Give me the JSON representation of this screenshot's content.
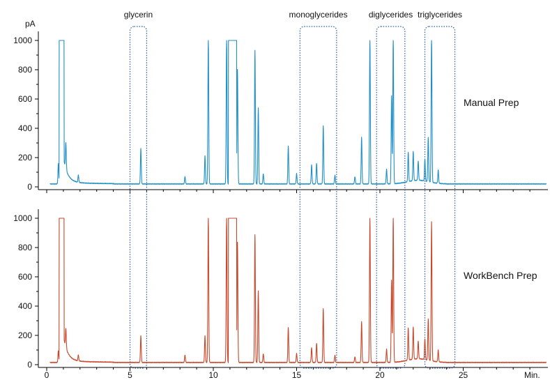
{
  "chart_data": {
    "type": "line",
    "y_unit_label": "pA",
    "x_unit_label": "Min.",
    "xlim": [
      0,
      30
    ],
    "ylim": [
      0,
      1050
    ],
    "x_ticks": [
      0,
      5,
      10,
      15,
      20,
      25
    ],
    "y_ticks": [
      0,
      200,
      400,
      600,
      800,
      1000
    ],
    "grid": false,
    "regions": [
      {
        "label": "glycerin",
        "x_start": 5.0,
        "x_end": 6.0
      },
      {
        "label": "monoglycerides",
        "x_start": 15.2,
        "x_end": 17.4
      },
      {
        "label": "diglycerides",
        "x_start": 19.8,
        "x_end": 21.5
      },
      {
        "label": "triglycerides",
        "x_start": 22.7,
        "x_end": 24.5
      }
    ],
    "series": [
      {
        "name": "Manual Prep",
        "color": "#1f8fc6",
        "baseline": 20,
        "saturated": [
          [
            0.75,
            1.05
          ],
          [
            10.9,
            11.4
          ]
        ],
        "peaks": [
          [
            0.7,
            140
          ],
          [
            1.15,
            180
          ],
          [
            1.9,
            50
          ],
          [
            5.65,
            240
          ],
          [
            8.3,
            50
          ],
          [
            9.5,
            190
          ],
          [
            9.7,
            1000
          ],
          [
            10.8,
            1000
          ],
          [
            11.45,
            780
          ],
          [
            12.5,
            910
          ],
          [
            12.7,
            520
          ],
          [
            13.0,
            70
          ],
          [
            14.5,
            260
          ],
          [
            15.0,
            70
          ],
          [
            15.9,
            130
          ],
          [
            16.2,
            140
          ],
          [
            16.6,
            400
          ],
          [
            17.3,
            60
          ],
          [
            18.5,
            50
          ],
          [
            18.9,
            320
          ],
          [
            19.4,
            1000
          ],
          [
            20.4,
            100
          ],
          [
            20.7,
            600
          ],
          [
            20.8,
            1000
          ],
          [
            21.7,
            200
          ],
          [
            22.0,
            200
          ],
          [
            22.3,
            130
          ],
          [
            22.7,
            150
          ],
          [
            22.9,
            300
          ],
          [
            23.1,
            1000
          ],
          [
            23.5,
            90
          ]
        ]
      },
      {
        "name": "WorkBench Prep",
        "color": "#c8472a",
        "baseline": 15,
        "saturated": [
          [
            0.75,
            1.05
          ],
          [
            10.9,
            11.4
          ]
        ],
        "peaks": [
          [
            0.7,
            80
          ],
          [
            1.15,
            130
          ],
          [
            1.9,
            40
          ],
          [
            5.65,
            180
          ],
          [
            8.3,
            50
          ],
          [
            9.5,
            180
          ],
          [
            9.7,
            1000
          ],
          [
            10.8,
            1000
          ],
          [
            11.45,
            820
          ],
          [
            12.5,
            870
          ],
          [
            12.7,
            490
          ],
          [
            13.0,
            60
          ],
          [
            14.5,
            240
          ],
          [
            15.0,
            60
          ],
          [
            15.9,
            100
          ],
          [
            16.2,
            130
          ],
          [
            16.6,
            370
          ],
          [
            17.3,
            50
          ],
          [
            18.5,
            40
          ],
          [
            18.9,
            280
          ],
          [
            19.4,
            1000
          ],
          [
            20.4,
            90
          ],
          [
            20.7,
            560
          ],
          [
            20.8,
            1000
          ],
          [
            21.7,
            220
          ],
          [
            22.0,
            220
          ],
          [
            22.3,
            120
          ],
          [
            22.7,
            140
          ],
          [
            22.9,
            280
          ],
          [
            23.1,
            950
          ],
          [
            23.5,
            80
          ]
        ]
      }
    ]
  }
}
